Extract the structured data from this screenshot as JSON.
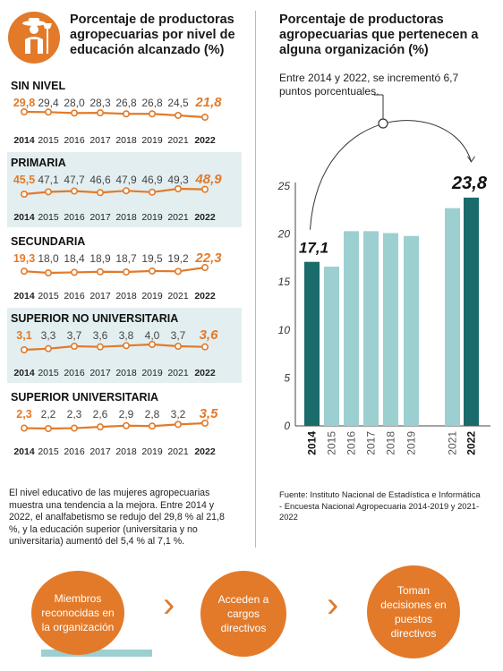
{
  "left_title": "Porcentaje de productoras agropecuarias por nivel de educación alcanzado (%)",
  "right_title": "Porcentaje de productoras agropecuarias que pertenecen a alguna organización (%)",
  "annotation": "Entre 2014 y 2022, se incrementó 6,7 puntos porcentuales.",
  "note": "El nivel educativo de las mujeres agropecuarias muestra una tendencia a la mejora. Entre 2014 y 2022, el analfabetismo se redujo del 29,8 % al 21,8 %, y la educación superior (universitaria y no universitaria) aumentó del 5,4 % al 7,1 %.",
  "source": "Fuente: Instituto Nacional de Estadística e Informática - Encuesta Nacional Agropecuaria 2014-2019 y 2021-2022",
  "steps": [
    "Miembros reconocidas en la organización",
    "Acceden a cargos directivos",
    "Toman decisiones en puestos directivos"
  ],
  "icon": "farmer-icon",
  "colors": {
    "orange": "#e27a2a",
    "dark_teal": "#1a6b6b",
    "light_teal": "#9ccfd0",
    "band": "#e3eef0"
  },
  "chart_data": [
    {
      "type": "line",
      "title": "SIN NIVEL",
      "x": [
        "2014",
        "2015",
        "2016",
        "2017",
        "2018",
        "2019",
        "2021",
        "2022"
      ],
      "labels": [
        "29,8",
        "29,4",
        "28,0",
        "28,3",
        "26,8",
        "26,8",
        "24,5",
        "21,8"
      ],
      "values": [
        29.8,
        29.4,
        28.0,
        28.3,
        26.8,
        26.8,
        24.5,
        21.8
      ]
    },
    {
      "type": "line",
      "title": "PRIMARIA",
      "x": [
        "2014",
        "2015",
        "2016",
        "2017",
        "2018",
        "2019",
        "2021",
        "2022"
      ],
      "labels": [
        "45,5",
        "47,1",
        "47,7",
        "46,6",
        "47,9",
        "46,9",
        "49,3",
        "48,9"
      ],
      "values": [
        45.5,
        47.1,
        47.7,
        46.6,
        47.9,
        46.9,
        49.3,
        48.9
      ]
    },
    {
      "type": "line",
      "title": "SECUNDARIA",
      "x": [
        "2014",
        "2015",
        "2016",
        "2017",
        "2018",
        "2019",
        "2021",
        "2022"
      ],
      "labels": [
        "19,3",
        "18,0",
        "18,4",
        "18,9",
        "18,7",
        "19,5",
        "19,2",
        "22,3"
      ],
      "values": [
        19.3,
        18.0,
        18.4,
        18.9,
        18.7,
        19.5,
        19.2,
        22.3
      ]
    },
    {
      "type": "line",
      "title": "SUPERIOR  NO UNIVERSITARIA",
      "x": [
        "2014",
        "2015",
        "2016",
        "2017",
        "2018",
        "2019",
        "2021",
        "2022"
      ],
      "labels": [
        "3,1",
        "3,3",
        "3,7",
        "3,6",
        "3,8",
        "4,0",
        "3,7",
        "3,6"
      ],
      "values": [
        3.1,
        3.3,
        3.7,
        3.6,
        3.8,
        4.0,
        3.7,
        3.6
      ]
    },
    {
      "type": "line",
      "title": "SUPERIOR UNIVERSITARIA",
      "x": [
        "2014",
        "2015",
        "2016",
        "2017",
        "2018",
        "2019",
        "2021",
        "2022"
      ],
      "labels": [
        "2,3",
        "2,2",
        "2,3",
        "2,6",
        "2,9",
        "2,8",
        "3,2",
        "3,5"
      ],
      "values": [
        2.3,
        2.2,
        2.3,
        2.6,
        2.9,
        2.8,
        3.2,
        3.5
      ]
    },
    {
      "type": "bar",
      "categories": [
        "2014",
        "2015",
        "2016",
        "2017",
        "2018",
        "2019",
        "2021",
        "2022"
      ],
      "values": [
        17.1,
        16.6,
        20.3,
        20.3,
        20.1,
        19.8,
        22.7,
        23.8
      ],
      "value_labels": {
        "2014": "17,1",
        "2022": "23,8"
      },
      "highlight": [
        "2014",
        "2022"
      ],
      "ylim": [
        0,
        25
      ],
      "yticks": [
        0,
        5,
        10,
        15,
        20,
        25
      ]
    }
  ]
}
